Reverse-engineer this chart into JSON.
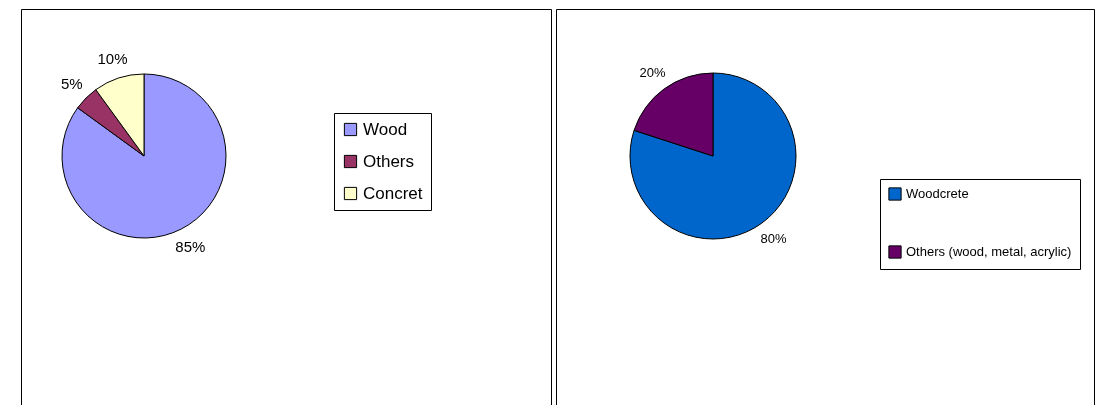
{
  "chart_data": [
    {
      "type": "pie",
      "categories": [
        "Wood",
        "Others",
        "Concret"
      ],
      "values": [
        85,
        5,
        10
      ],
      "colors": [
        "#9999ff",
        "#993366",
        "#ffffcc"
      ],
      "value_labels": [
        "85%",
        "5%",
        "10%"
      ],
      "legend": "right"
    },
    {
      "type": "pie",
      "categories": [
        "Woodcrete",
        "Others (wood, metal, acrylic)"
      ],
      "values": [
        80,
        20
      ],
      "colors": [
        "#0066cc",
        "#660066"
      ],
      "value_labels": [
        "80%",
        "20%"
      ],
      "legend": "right"
    }
  ]
}
